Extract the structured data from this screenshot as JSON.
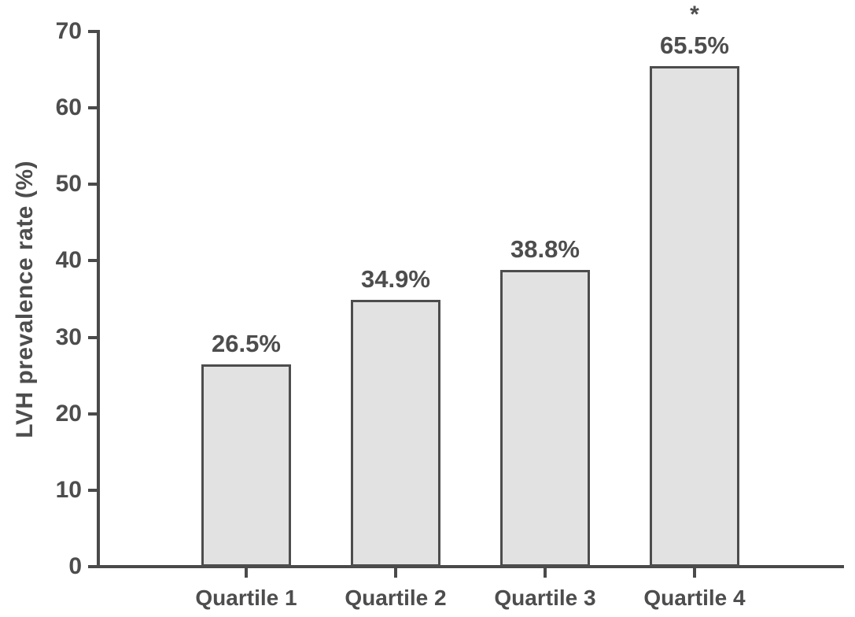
{
  "chart_data": {
    "type": "bar",
    "title": "",
    "xlabel": "",
    "ylabel": "LVH prevalence rate (%)",
    "categories": [
      "Quartile 1",
      "Quartile 2",
      "Quartile 3",
      "Quartile 4"
    ],
    "values": [
      26.5,
      34.9,
      38.8,
      65.5
    ],
    "value_labels": [
      "26.5%",
      "34.9%",
      "38.8%",
      "65.5%"
    ],
    "annotations": [
      {
        "category_index": 3,
        "text": "*"
      }
    ],
    "ylim": [
      0,
      70
    ],
    "yticks": [
      0,
      10,
      20,
      30,
      40,
      50,
      60,
      70
    ],
    "grid": false,
    "legend": false,
    "bar_fill_color": "#e2e2e2",
    "bar_border_color": "#4d4d4d",
    "axis_color": "#4a4a4a",
    "text_color": "#4d4d4d",
    "background_color": "#ffffff"
  }
}
